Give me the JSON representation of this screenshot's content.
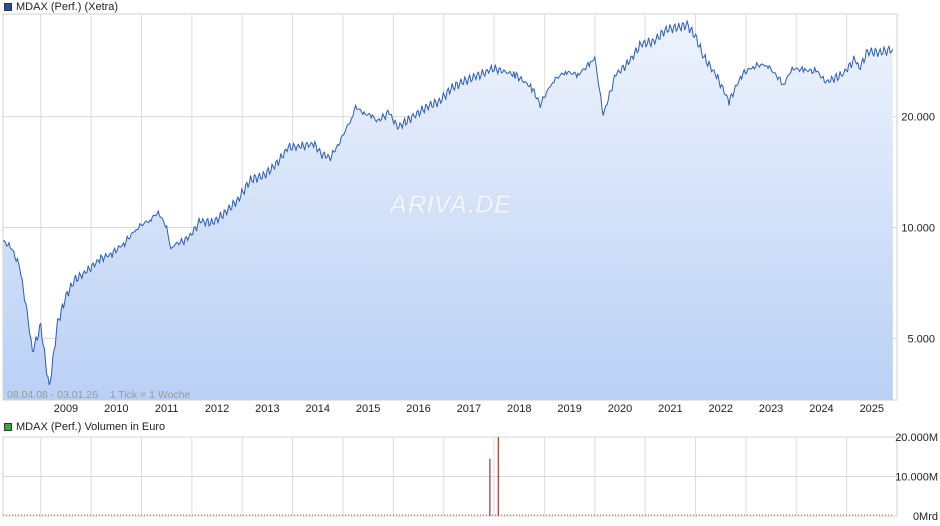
{
  "price_chart": {
    "legend_label": "MDAX (Perf.) (Xetra)",
    "legend_color": "#1f4fa8",
    "line_color": "#2a5cb8",
    "area_top_color": "#eef3fc",
    "area_bottom_color": "#b9d0f5",
    "watermark": "ARIVA.DE",
    "period_info": "08.04.08 - 03.01.26    1 Tick = 1 Woche",
    "scale": "log",
    "y_ticks": [
      {
        "value": 5000,
        "label": "5.000"
      },
      {
        "value": 10000,
        "label": "10.000"
      },
      {
        "value": 20000,
        "label": "20.000"
      }
    ],
    "x_ticks": [
      "2009",
      "2010",
      "2011",
      "2012",
      "2013",
      "2014",
      "2015",
      "2016",
      "2017",
      "2018",
      "2019",
      "2020",
      "2021",
      "2022",
      "2023",
      "2024",
      "2025"
    ]
  },
  "volume_chart": {
    "legend_label": "MDAX (Perf.) Volumen in Euro",
    "legend_color": "#33aa33",
    "bar_color": "#b03030",
    "y_ticks": [
      {
        "value": 0,
        "label": "0Mrd"
      },
      {
        "value": 10000,
        "label": "10.000M"
      },
      {
        "value": 20000,
        "label": "20.000M"
      }
    ]
  },
  "chart_data": [
    {
      "type": "area",
      "title": "MDAX (Perf.) (Xetra)",
      "ylabel": "",
      "xlabel": "",
      "y_scale": "log",
      "ylim": [
        3400,
        38000
      ],
      "x": [
        "2008-04",
        "2008-06",
        "2008-08",
        "2008-10",
        "2008-11",
        "2009-01",
        "2009-03",
        "2009-05",
        "2009-07",
        "2009-09",
        "2009-12",
        "2010-03",
        "2010-06",
        "2010-09",
        "2010-12",
        "2011-03",
        "2011-05",
        "2011-07",
        "2011-08",
        "2011-09",
        "2011-12",
        "2012-03",
        "2012-06",
        "2012-09",
        "2012-12",
        "2013-03",
        "2013-06",
        "2013-09",
        "2013-12",
        "2014-03",
        "2014-06",
        "2014-08",
        "2014-10",
        "2014-12",
        "2015-03",
        "2015-04",
        "2015-06",
        "2015-08",
        "2015-09",
        "2015-12",
        "2016-02",
        "2016-06",
        "2016-09",
        "2016-12",
        "2017-03",
        "2017-06",
        "2017-09",
        "2017-12",
        "2018-01",
        "2018-06",
        "2018-10",
        "2018-12",
        "2019-03",
        "2019-06",
        "2019-09",
        "2019-12",
        "2020-01",
        "2020-03",
        "2020-06",
        "2020-09",
        "2020-12",
        "2021-03",
        "2021-06",
        "2021-09",
        "2021-11",
        "2022-01",
        "2022-03",
        "2022-06",
        "2022-09",
        "2022-12",
        "2023-03",
        "2023-06",
        "2023-10",
        "2023-12",
        "2024-03",
        "2024-06",
        "2024-08",
        "2024-12",
        "2025-03",
        "2025-04",
        "2025-06",
        "2025-09",
        "2025-12"
      ],
      "values": [
        9200,
        8800,
        7800,
        5600,
        4600,
        5400,
        3650,
        5500,
        6500,
        7200,
        7600,
        8200,
        8500,
        9100,
        10000,
        10500,
        11000,
        10000,
        8700,
        9000,
        9300,
        10400,
        10300,
        11000,
        11900,
        13500,
        13800,
        14800,
        16500,
        16600,
        16900,
        15800,
        15500,
        16900,
        19800,
        21300,
        20400,
        20100,
        19400,
        20500,
        18700,
        20100,
        21300,
        22000,
        24000,
        25000,
        25800,
        26700,
        27000,
        26000,
        24000,
        21600,
        25000,
        26500,
        26000,
        28000,
        28900,
        20200,
        26000,
        28000,
        31500,
        32000,
        34500,
        35000,
        35500,
        33000,
        29000,
        25800,
        22000,
        26000,
        27500,
        27700,
        24500,
        27000,
        26800,
        26500,
        24800,
        26000,
        28700,
        27000,
        30000,
        29900,
        30500
      ]
    },
    {
      "type": "bar",
      "title": "MDAX (Perf.) Volumen in Euro",
      "ylabel": "",
      "ylim": [
        0,
        20000
      ],
      "unit": "M",
      "x": [
        "2017-12",
        "2018-02"
      ],
      "values": [
        14500,
        21000
      ]
    }
  ]
}
